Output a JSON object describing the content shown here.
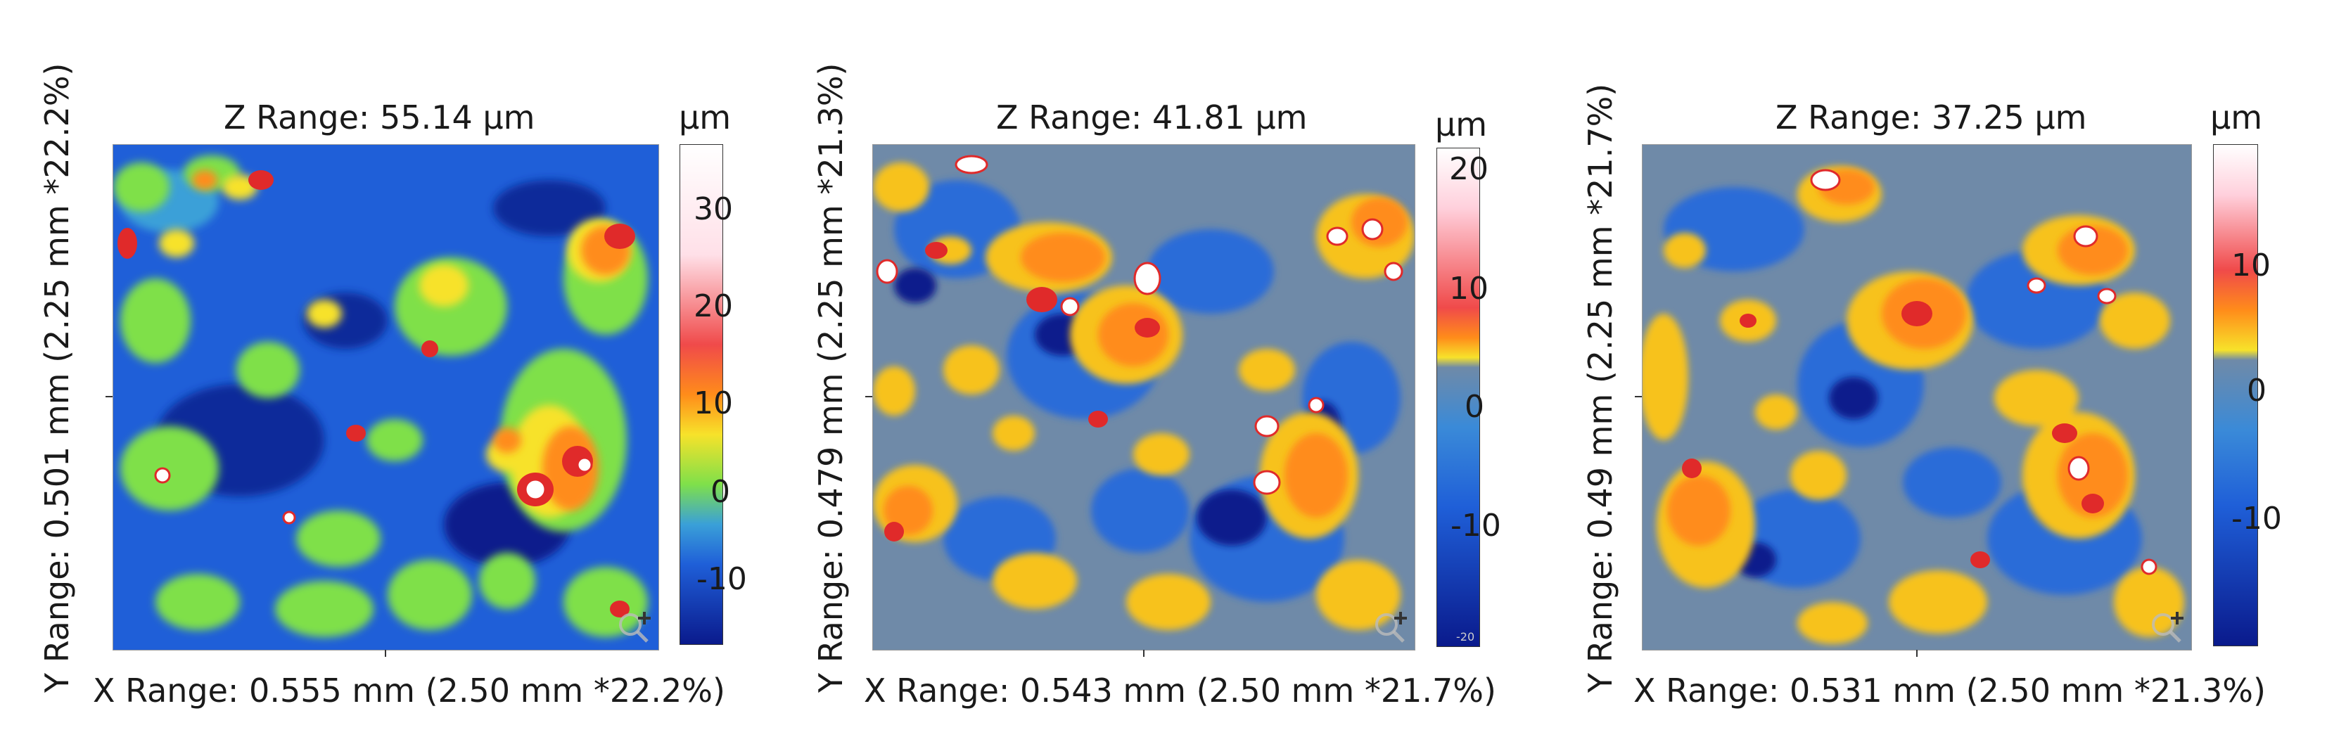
{
  "panels": [
    {
      "z_range": "Z Range: 55.14 µm",
      "y_range": "Y Range: 0.501 mm (2.25 mm *22.2%)",
      "x_range": "X Range: 0.555 mm (2.50 mm *22.2%)",
      "unit": "µm",
      "ticks": [
        "30",
        "20",
        "10",
        "0",
        "-10"
      ]
    },
    {
      "z_range": "Z Range: 41.81 µm",
      "y_range": "Y Range: 0.479 mm (2.25 mm *21.3%)",
      "x_range": "X Range: 0.543 mm (2.50 mm *21.7%)",
      "unit": "µm",
      "ticks": [
        "20",
        "10",
        "0",
        "-10",
        "-20"
      ]
    },
    {
      "z_range": "Z Range: 37.25 µm",
      "y_range": "Y Range: 0.49 mm (2.25 mm *21.7%)",
      "x_range": "X Range: 0.531 mm (2.50 mm *21.3%)",
      "unit": "µm",
      "ticks": [
        "10",
        "0",
        "-10"
      ]
    }
  ],
  "colors": {
    "deep_blue": "#0a1a8c",
    "blue": "#1a5cd6",
    "grey_blue": "#6f8aa8",
    "green": "#7fe04a",
    "yellow": "#f7e22a",
    "orange": "#ff8c1a",
    "red": "#e02a2a",
    "white": "#ffffff"
  },
  "icons": [
    "zoom-icon"
  ]
}
